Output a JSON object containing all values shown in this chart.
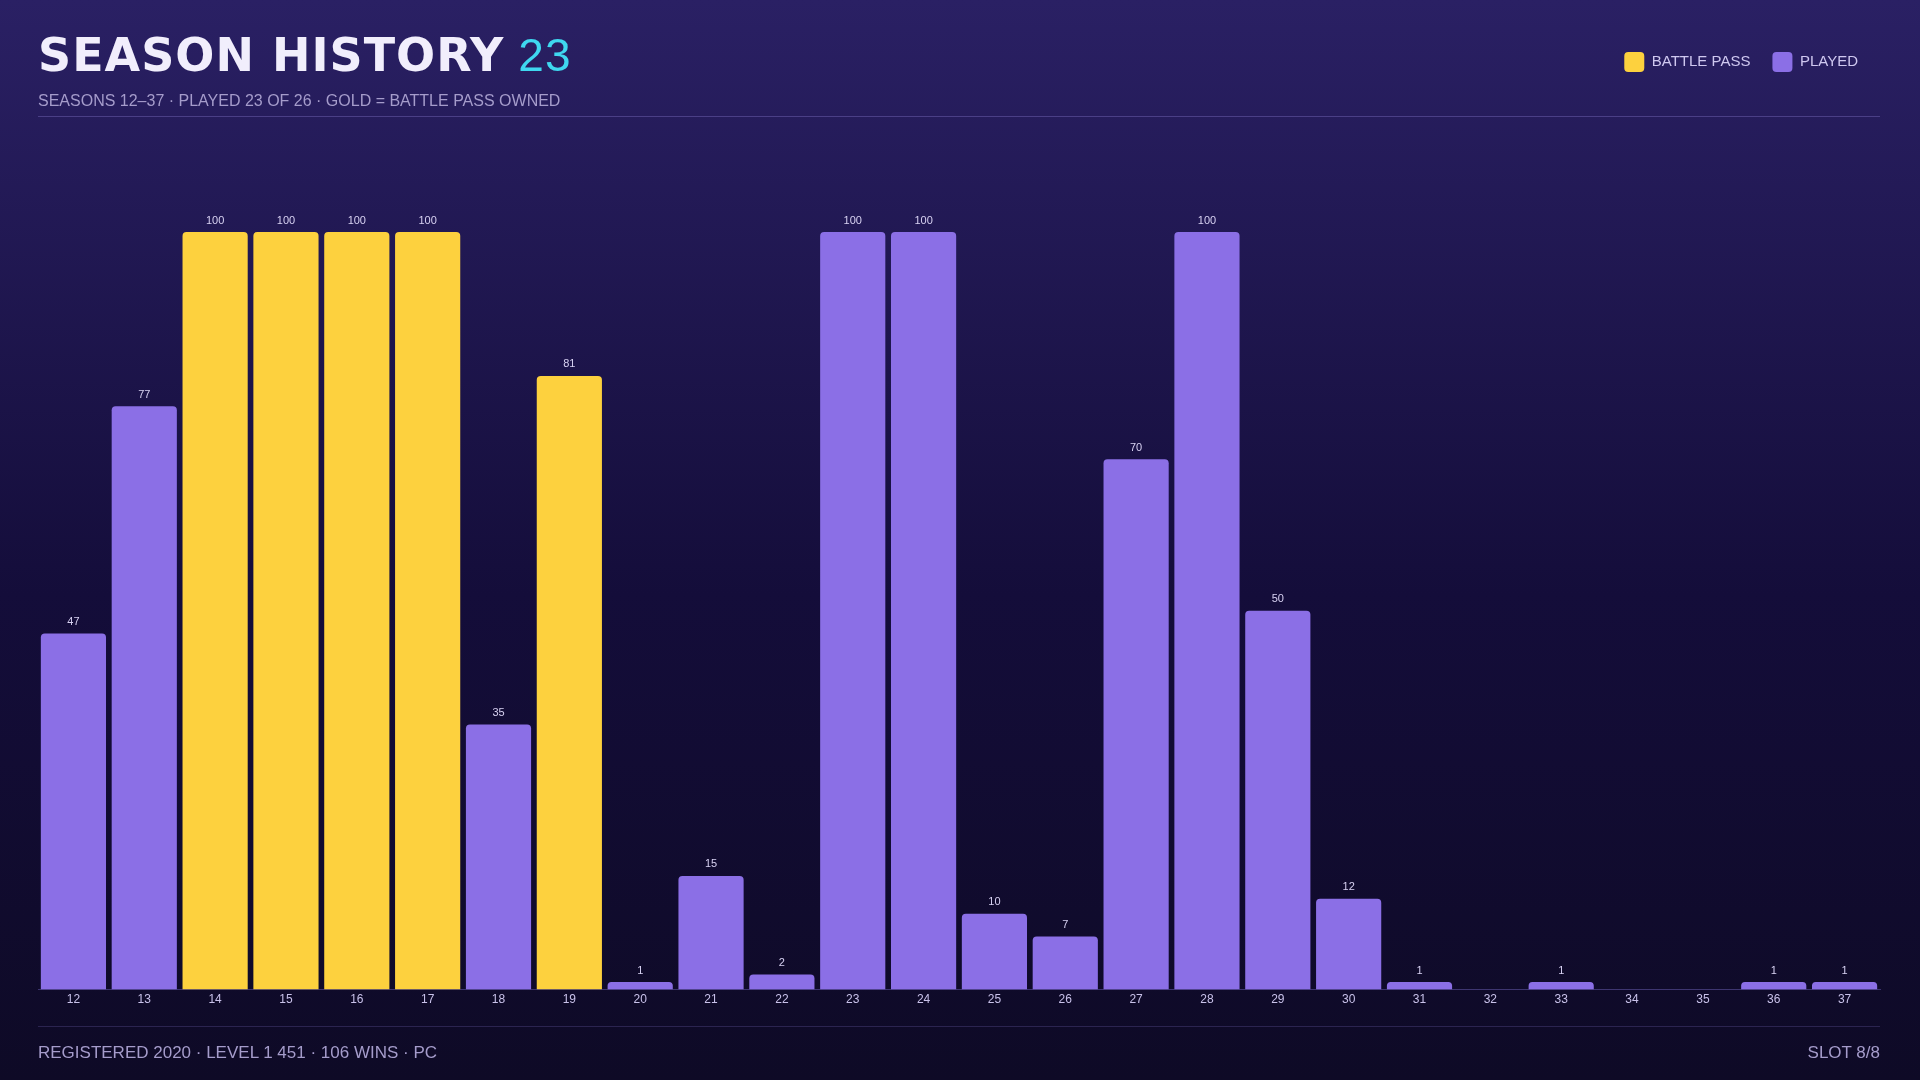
{
  "chart_data": {
    "type": "bar",
    "title": "SEASON HISTORY 23",
    "subtitle": "SEASONS 12–37 · PLAYED 23 OF 26 · GOLD = BATTLE PASS OWNED",
    "categories": [
      "12",
      "13",
      "14",
      "15",
      "16",
      "17",
      "18",
      "19",
      "20",
      "21",
      "22",
      "23",
      "24",
      "25",
      "26",
      "27",
      "28",
      "29",
      "30",
      "31",
      "32",
      "33",
      "34",
      "35",
      "36",
      "37"
    ],
    "series": [
      {
        "name": "BATTLE PASS",
        "color": "#fdd13e",
        "values": [
          null,
          null,
          100,
          100,
          100,
          100,
          null,
          81,
          null,
          null,
          null,
          null,
          null,
          null,
          null,
          null,
          null,
          null,
          null,
          null,
          null,
          null,
          null,
          null,
          null,
          null
        ]
      },
      {
        "name": "PLAYED",
        "color": "#8b6fe6",
        "values": [
          47,
          77,
          null,
          null,
          null,
          null,
          35,
          null,
          1,
          15,
          2,
          100,
          100,
          10,
          7,
          70,
          100,
          50,
          12,
          1,
          null,
          1,
          null,
          null,
          1,
          1
        ]
      }
    ],
    "data_labels": true,
    "grid": false,
    "legend": "top right",
    "tick_labels": "x",
    "annotations": [
      "REGISTERED 2020 · LEVEL 1 451 · 106 WINS · PC",
      "SLOT 8/8"
    ]
  }
}
